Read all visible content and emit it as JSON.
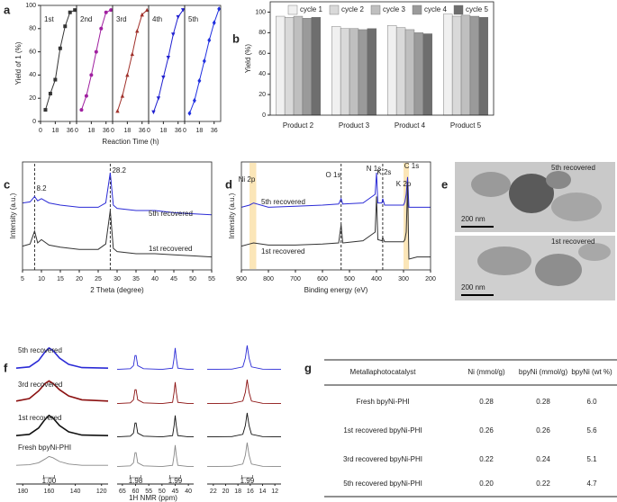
{
  "panel_labels": [
    "a",
    "b",
    "c",
    "d",
    "e",
    "f",
    "g"
  ],
  "chart_data": [
    {
      "type": "line",
      "facet": true,
      "ylabel": "Yield of 1 (%)",
      "xlabel": "Reaction Time (h)",
      "x": [
        6,
        12,
        18,
        24,
        30,
        36,
        42
      ],
      "xlim": [
        0,
        44
      ],
      "xticks": [
        0,
        18,
        36
      ],
      "ylim": [
        0,
        100
      ],
      "yticks": [
        0,
        20,
        40,
        60,
        80,
        100
      ],
      "series": [
        {
          "name": "1st",
          "color": "#333333",
          "marker": "square",
          "values": [
            10,
            24,
            36,
            63,
            82,
            94,
            96
          ]
        },
        {
          "name": "2nd",
          "color": "#a020a0",
          "marker": "circle",
          "values": [
            10,
            22,
            40,
            60,
            80,
            94,
            96
          ]
        },
        {
          "name": "3rd",
          "color": "#a0302a",
          "marker": "triangle",
          "values": [
            9,
            22,
            40,
            58,
            78,
            92,
            96
          ]
        },
        {
          "name": "4th",
          "color": "#2020d0",
          "marker": "triangle-down",
          "values": [
            8,
            20,
            38,
            55,
            75,
            90,
            96
          ]
        },
        {
          "name": "5th",
          "color": "#2030e0",
          "marker": "diamond",
          "values": [
            7,
            18,
            35,
            52,
            70,
            85,
            97
          ]
        }
      ]
    },
    {
      "type": "bar",
      "ylabel": "Yield (%)",
      "categories": [
        "Product 2",
        "Product 3",
        "Product 4",
        "Product 5"
      ],
      "ylim": [
        0,
        110
      ],
      "yticks": [
        0,
        20,
        40,
        60,
        80,
        100
      ],
      "series": [
        {
          "name": "cycle 1",
          "color": "#f0f0f0",
          "values": [
            96,
            86,
            87,
            98
          ]
        },
        {
          "name": "cycle 2",
          "color": "#d9d9d9",
          "values": [
            95,
            84,
            85,
            96
          ]
        },
        {
          "name": "cycle 3",
          "color": "#bfbfbf",
          "values": [
            96,
            84,
            83,
            97
          ]
        },
        {
          "name": "cycle 4",
          "color": "#9a9a9a",
          "values": [
            94,
            83,
            80,
            96
          ]
        },
        {
          "name": "cycle 5",
          "color": "#6e6e6e",
          "values": [
            95,
            84,
            79,
            95
          ]
        }
      ]
    },
    {
      "type": "line",
      "ylabel": "Intensity (a.u.)",
      "xlabel": "2 Theta (degree)",
      "x": [
        5,
        7,
        8.2,
        9,
        10,
        12,
        15,
        20,
        25,
        27,
        28.2,
        29,
        30,
        35,
        40,
        45,
        50,
        55
      ],
      "xlim": [
        5,
        55
      ],
      "xticks": [
        5,
        10,
        15,
        20,
        25,
        30,
        35,
        40,
        45,
        50,
        55
      ],
      "ylim": [
        0,
        1
      ],
      "vlines": [
        8.2,
        28.2
      ],
      "series": [
        {
          "name": "5th recovered",
          "color": "#2b2bd6",
          "values": [
            0.62,
            0.63,
            0.68,
            0.64,
            0.66,
            0.62,
            0.6,
            0.58,
            0.58,
            0.62,
            0.9,
            0.6,
            0.57,
            0.55,
            0.55,
            0.53,
            0.52,
            0.51
          ]
        },
        {
          "name": "1st recovered",
          "color": "#333333",
          "values": [
            0.22,
            0.24,
            0.36,
            0.25,
            0.28,
            0.23,
            0.21,
            0.19,
            0.19,
            0.24,
            0.55,
            0.2,
            0.17,
            0.15,
            0.15,
            0.14,
            0.13,
            0.12
          ]
        }
      ]
    },
    {
      "type": "line",
      "ylabel": "Intensity (a.u.)",
      "xlabel": "Binding energy (eV)",
      "x": [
        900,
        870,
        855,
        800,
        700,
        600,
        540,
        531,
        525,
        450,
        405,
        400,
        395,
        380,
        377,
        370,
        300,
        295,
        290,
        285,
        280,
        250,
        200
      ],
      "xlim": [
        900,
        200
      ],
      "xticks": [
        900,
        800,
        700,
        600,
        500,
        400,
        300,
        200
      ],
      "ylim": [
        0,
        1
      ],
      "dashed": [
        531,
        377
      ],
      "bands": [
        [
          870,
          845
        ],
        [
          300,
          280
        ]
      ],
      "peaks": [
        {
          "label": "Ni 2p",
          "x": 880
        },
        {
          "label": "O 1s",
          "x": 560
        },
        {
          "label": "N 1s",
          "x": 410
        },
        {
          "label": "K 2s",
          "x": 372
        },
        {
          "label": "K 2p",
          "x": 300
        },
        {
          "label": "C 1s",
          "x": 270
        }
      ],
      "series": [
        {
          "name": "5th recovered",
          "color": "#2b2bd6",
          "values": [
            0.58,
            0.6,
            0.62,
            0.58,
            0.59,
            0.6,
            0.61,
            0.66,
            0.61,
            0.62,
            0.7,
            0.9,
            0.62,
            0.62,
            0.66,
            0.6,
            0.6,
            0.63,
            0.7,
            0.86,
            0.58,
            0.58,
            0.58
          ]
        },
        {
          "name": "1st recovered",
          "color": "#333333",
          "values": [
            0.22,
            0.24,
            0.25,
            0.23,
            0.23,
            0.24,
            0.25,
            0.42,
            0.25,
            0.27,
            0.35,
            0.68,
            0.28,
            0.27,
            0.3,
            0.26,
            0.26,
            0.28,
            0.35,
            0.78,
            0.1,
            0.12,
            0.12
          ]
        }
      ]
    },
    {
      "type": "nmr",
      "xlabel": "1H NMR (ppm)",
      "ylim": [
        0,
        1
      ],
      "segments": [
        {
          "xlim": [
            185,
            115
          ],
          "xticks": [
            180,
            160,
            140,
            120
          ],
          "x": [
            185,
            175,
            168,
            163,
            160,
            157,
            152,
            145,
            135,
            115
          ]
        },
        {
          "xlim": [
            67,
            38
          ],
          "xticks": [
            65,
            60,
            55,
            50,
            45,
            40
          ],
          "x": [
            67,
            62,
            60.8,
            60.2,
            59.8,
            59.2,
            57,
            50,
            46,
            45.4,
            45,
            44.6,
            44,
            40,
            38
          ]
        },
        {
          "xlim": [
            23,
            11
          ],
          "xticks": [
            22,
            20,
            18,
            16,
            14,
            12
          ],
          "x": [
            23,
            19,
            17.2,
            16.8,
            16.5,
            16.2,
            15.8,
            14,
            11
          ]
        }
      ],
      "integrals": [
        {
          "segment": 0,
          "x": 160,
          "label": "1.00"
        },
        {
          "segment": 1,
          "x": 60,
          "label": "1.98"
        },
        {
          "segment": 1,
          "x": 45,
          "label": "1.99"
        },
        {
          "segment": 2,
          "x": 16.5,
          "label": "1.99"
        }
      ],
      "series": [
        {
          "name": "5th recovered",
          "color": "#2b2bd6",
          "values": [
            [
              0.1,
              0.15,
              0.4,
              0.75,
              0.9,
              0.8,
              0.5,
              0.25,
              0.12,
              0.1
            ],
            [
              0.05,
              0.08,
              0.2,
              0.6,
              0.6,
              0.2,
              0.08,
              0.05,
              0.1,
              0.5,
              0.9,
              0.5,
              0.1,
              0.05,
              0.05
            ],
            [
              0.05,
              0.06,
              0.15,
              0.5,
              1.0,
              0.5,
              0.15,
              0.06,
              0.05
            ]
          ]
        },
        {
          "name": "3rd recovered",
          "color": "#8b1010",
          "values": [
            [
              0.15,
              0.25,
              0.55,
              0.85,
              0.95,
              0.85,
              0.6,
              0.35,
              0.2,
              0.15
            ],
            [
              0.05,
              0.08,
              0.2,
              0.6,
              0.6,
              0.2,
              0.08,
              0.05,
              0.1,
              0.5,
              0.9,
              0.5,
              0.1,
              0.05,
              0.05
            ],
            [
              0.05,
              0.06,
              0.15,
              0.5,
              1.0,
              0.5,
              0.15,
              0.06,
              0.05
            ]
          ]
        },
        {
          "name": "1st recovered",
          "color": "#111111",
          "values": [
            [
              0.1,
              0.15,
              0.4,
              0.75,
              0.9,
              0.8,
              0.5,
              0.25,
              0.12,
              0.1
            ],
            [
              0.05,
              0.08,
              0.2,
              0.6,
              0.6,
              0.2,
              0.08,
              0.05,
              0.1,
              0.5,
              0.9,
              0.5,
              0.1,
              0.05,
              0.05
            ],
            [
              0.05,
              0.06,
              0.15,
              0.5,
              1.0,
              0.5,
              0.15,
              0.06,
              0.05
            ]
          ]
        },
        {
          "name": "Fresh bpyNi-PHI",
          "color": "#888888",
          "values": [
            [
              0.1,
              0.12,
              0.2,
              0.35,
              0.45,
              0.4,
              0.25,
              0.15,
              0.1,
              0.1
            ],
            [
              0.05,
              0.08,
              0.2,
              0.6,
              0.6,
              0.2,
              0.08,
              0.05,
              0.1,
              0.5,
              0.9,
              0.5,
              0.1,
              0.05,
              0.05
            ],
            [
              0.05,
              0.06,
              0.15,
              0.5,
              1.0,
              0.5,
              0.15,
              0.06,
              0.05
            ]
          ]
        }
      ]
    }
  ],
  "images": [
    {
      "caption": "5th recovered",
      "scale": "200 nm"
    },
    {
      "caption": "1st recovered",
      "scale": "200 nm"
    }
  ],
  "table": {
    "header": [
      "Metallaphotocatalyst",
      "Ni (mmol/g)",
      "bpyNi (mmol/g)",
      "bpyNi (wt %)"
    ],
    "rows": [
      [
        "Fresh bpyNi-PHI",
        "0.28",
        "0.28",
        "6.0"
      ],
      [
        "1st recovered bpyNi-PHI",
        "0.26",
        "0.26",
        "5.6"
      ],
      [
        "3rd recovered bpyNi-PHI",
        "0.22",
        "0.24",
        "5.1"
      ],
      [
        "5th recovered bpyNi-PHI",
        "0.20",
        "0.22",
        "4.7"
      ]
    ]
  }
}
